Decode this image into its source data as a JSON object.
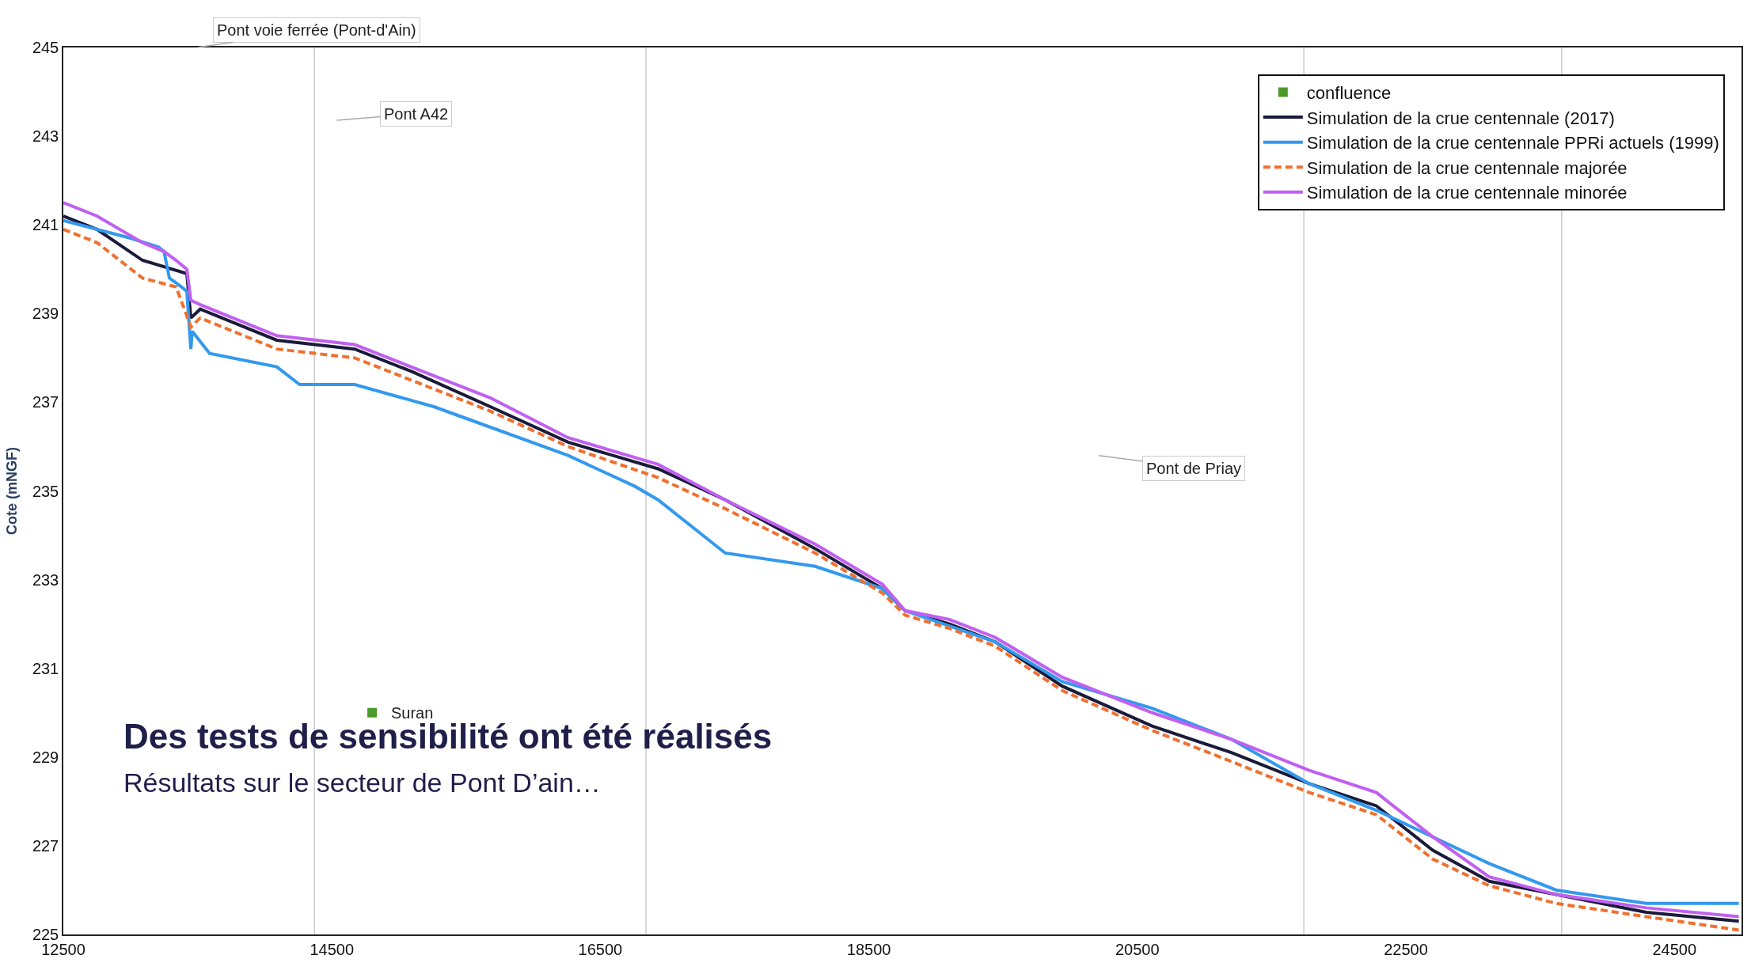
{
  "chart_data": {
    "type": "line",
    "title": "Des tests de sensibilité ont été réalisés",
    "subtitle": "Résultats sur le secteur de Pont D’ain…",
    "ylabel": "Cote (mNGF)",
    "xlim": [
      12500,
      25000
    ],
    "xticks": [
      12500,
      14500,
      16500,
      18500,
      20500,
      22500,
      24500
    ],
    "ylim": [
      225,
      245
    ],
    "yticks": [
      225,
      227,
      229,
      231,
      233,
      235,
      237,
      239,
      241,
      243,
      245
    ],
    "grid": false,
    "legend": "top right",
    "series": [
      {
        "name": "confluence",
        "type": "scatter",
        "marker": "square",
        "color": "#4a9a2a",
        "x": [
          14800
        ],
        "values": [
          230.0
        ]
      },
      {
        "name": "Simulation de la crue centennale (2017)",
        "color": "#1a1a3a",
        "x": [
          12500,
          12750,
          13090,
          13420,
          13450,
          13520,
          14090,
          14670,
          15090,
          15680,
          16260,
          16930,
          17430,
          18100,
          18600,
          18770,
          19100,
          19440,
          19940,
          20610,
          21200,
          21780,
          22280,
          22700,
          23120,
          23620,
          24290,
          24980
        ],
        "values": [
          241.2,
          240.9,
          240.2,
          239.9,
          238.9,
          239.1,
          238.4,
          238.2,
          237.7,
          236.9,
          236.1,
          235.5,
          234.8,
          233.7,
          232.8,
          232.3,
          232.0,
          231.6,
          230.6,
          229.7,
          229.1,
          228.4,
          227.9,
          226.9,
          226.2,
          225.9,
          225.5,
          225.3
        ]
      },
      {
        "name": "Simulation de la crue centennale PPRi actuels (1999)",
        "color": "#3399ee",
        "x": [
          12500,
          13000,
          13210,
          13250,
          13290,
          13380,
          13420,
          13450,
          13460,
          13590,
          14090,
          14260,
          14670,
          15260,
          16260,
          16760,
          16930,
          17430,
          18100,
          18600,
          18770,
          19440,
          19940,
          20610,
          21200,
          21780,
          22280,
          22700,
          23120,
          23620,
          24290,
          24980
        ],
        "values": [
          241.1,
          240.7,
          240.5,
          240.4,
          239.8,
          239.6,
          239.5,
          238.2,
          238.6,
          238.1,
          237.8,
          237.4,
          237.4,
          236.9,
          235.8,
          235.1,
          234.8,
          233.6,
          233.3,
          232.8,
          232.3,
          231.6,
          230.7,
          230.1,
          229.4,
          228.4,
          227.8,
          227.2,
          226.6,
          226.0,
          225.7,
          225.7
        ]
      },
      {
        "name": "Simulation de la crue centennale majorée",
        "color": "#f07030",
        "line_style": "dashed",
        "x": [
          12500,
          12750,
          13090,
          13340,
          13450,
          13520,
          14090,
          14670,
          15090,
          15680,
          16260,
          16930,
          17430,
          18100,
          18600,
          18770,
          19100,
          19440,
          19940,
          20610,
          21200,
          21780,
          22280,
          22700,
          23120,
          23620,
          24290,
          24980
        ],
        "values": [
          240.9,
          240.6,
          239.8,
          239.6,
          238.7,
          238.9,
          238.2,
          238.0,
          237.5,
          236.8,
          236.0,
          235.3,
          234.6,
          233.6,
          232.7,
          232.2,
          231.9,
          231.5,
          230.5,
          229.6,
          228.9,
          228.2,
          227.7,
          226.7,
          226.1,
          225.7,
          225.4,
          225.1
        ]
      },
      {
        "name": "Simulation de la crue centennale minorée",
        "color": "#c060f0",
        "x": [
          12500,
          12750,
          13090,
          13250,
          13340,
          13420,
          13450,
          13520,
          14090,
          14670,
          15090,
          15680,
          16260,
          16930,
          17430,
          18100,
          18600,
          18770,
          19100,
          19440,
          19940,
          20610,
          21200,
          21780,
          22280,
          22700,
          23120,
          23620,
          24290,
          24980
        ],
        "values": [
          241.5,
          241.2,
          240.6,
          240.4,
          240.2,
          240.0,
          239.3,
          239.2,
          238.5,
          238.3,
          237.8,
          237.1,
          236.2,
          235.6,
          234.8,
          233.8,
          232.9,
          232.3,
          232.1,
          231.7,
          230.8,
          230.0,
          229.4,
          228.7,
          228.2,
          227.2,
          226.3,
          225.9,
          225.6,
          225.4
        ]
      }
    ],
    "ref_lines": [
      {
        "axis": "x",
        "value": 14370,
        "color": "#c8ccd0"
      },
      {
        "axis": "x",
        "value": 16840,
        "color": "#c8ccd0"
      },
      {
        "axis": "x",
        "value": 21740,
        "color": "#c8ccd0"
      },
      {
        "axis": "x",
        "value": 23660,
        "color": "#c8ccd0"
      }
    ],
    "annotations": [
      "Pont voie ferrée (Pont-d'Ain)",
      "Pont A42",
      "Pont de Priay",
      {
        "text": "Suran",
        "x": 14800,
        "y": 230.0
      }
    ]
  }
}
